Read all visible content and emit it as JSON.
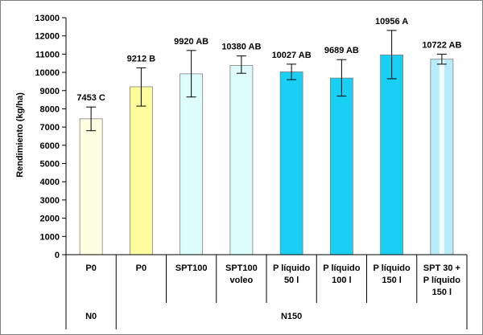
{
  "chart_data": {
    "type": "bar",
    "ylabel": "Rendimiento (kg/ha)",
    "ylim": [
      0,
      13000
    ],
    "ytick_step": 1000,
    "grid": false,
    "legend": "none",
    "categories": [
      {
        "lines": [
          "P0"
        ]
      },
      {
        "lines": [
          "P0"
        ]
      },
      {
        "lines": [
          "SPT100"
        ]
      },
      {
        "lines": [
          "SPT100",
          "voleo"
        ]
      },
      {
        "lines": [
          "P líquido",
          "50 l"
        ]
      },
      {
        "lines": [
          "P líquido",
          "100 l"
        ]
      },
      {
        "lines": [
          "P líquido",
          "150 l"
        ]
      },
      {
        "lines": [
          "SPT 30 +",
          "P líquido",
          "150 l"
        ]
      }
    ],
    "groups": [
      {
        "label": "N0",
        "span": [
          0,
          0
        ]
      },
      {
        "label": "N150",
        "span": [
          1,
          7
        ]
      }
    ],
    "values": [
      7453,
      9212,
      9920,
      10380,
      10027,
      9689,
      10956,
      10722
    ],
    "error_low": [
      6800,
      8150,
      8650,
      9950,
      9600,
      8700,
      9650,
      10450
    ],
    "error_high": [
      8100,
      10250,
      11200,
      10900,
      10450,
      10700,
      12300,
      11000
    ],
    "data_labels": [
      "7453 C",
      "9212 B",
      "9920 AB",
      "10380 AB",
      "10027 AB",
      "9689 AB",
      "10956 A",
      "10722 AB"
    ],
    "bar_colors": [
      "#fefee0",
      "#fcfc9c",
      "#ddfcfc",
      "#ddfcfc",
      "#19d0f4",
      "#19d0f4",
      "#19d0f4",
      "#b9ecfb"
    ]
  }
}
